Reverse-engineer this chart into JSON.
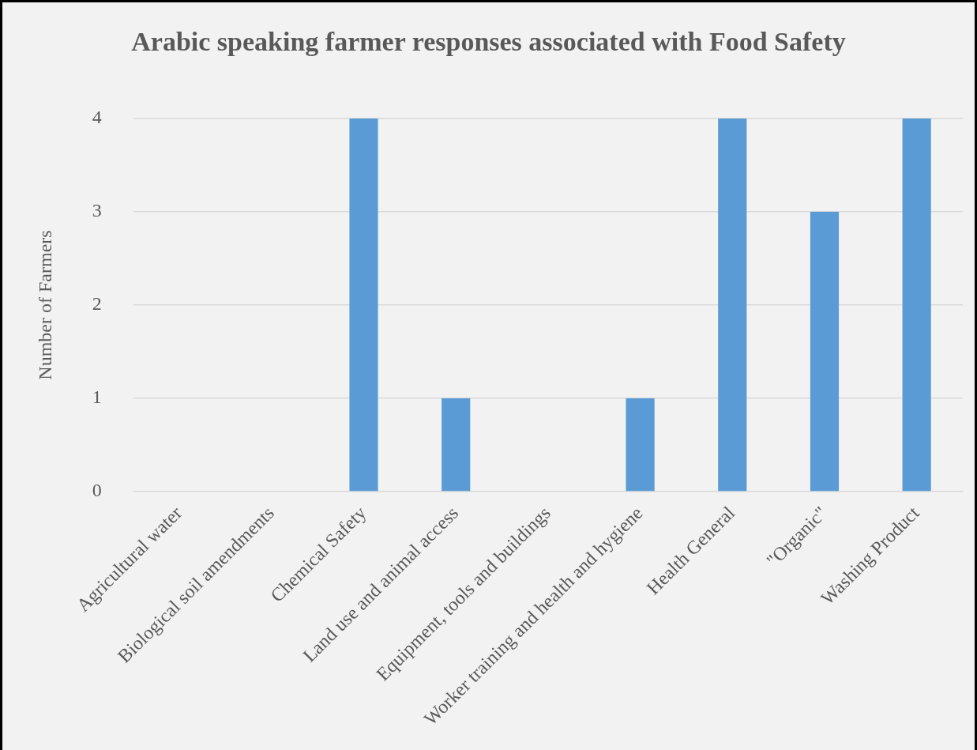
{
  "chart_data": {
    "type": "bar",
    "title": "Arabic speaking farmer responses associated with Food Safety",
    "ylabel": "Number of Farmers",
    "categories": [
      "Agricultural water",
      "Biological soil amendments",
      "Chemical Safety",
      "Land use and animal access",
      "Equipment, tools and buildings",
      "Worker training and health and hygiene",
      "Health General",
      "\"Organic\"",
      "Washing Product"
    ],
    "values": [
      0,
      0,
      4,
      1,
      0,
      1,
      4,
      3,
      4
    ],
    "color": "#5b9bd5",
    "ylim": [
      0,
      4
    ],
    "yticks": [
      0,
      1,
      2,
      3,
      4
    ],
    "grid": "y",
    "legend": false
  }
}
